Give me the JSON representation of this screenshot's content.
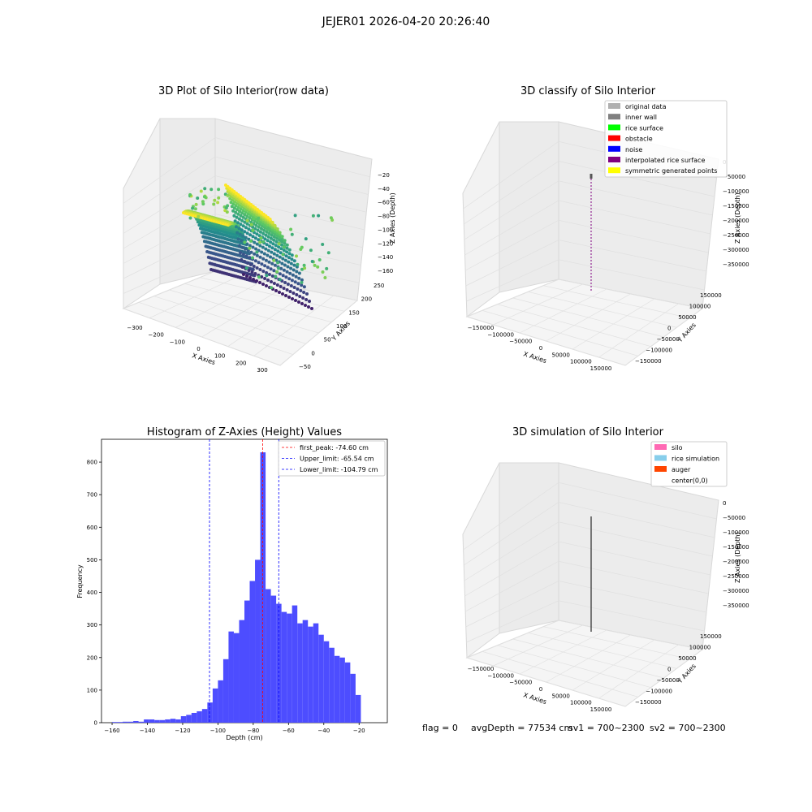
{
  "figure": {
    "suptitle": "JEJER01 2026-04-20 20:26:40"
  },
  "status": {
    "flag": "flag = 0",
    "avg_depth": "avgDepth = 77534 cm",
    "sv1": "sv1 = 700~2300",
    "sv2": "sv2 = 700~2300"
  },
  "panels": {
    "raw": {
      "title": "3D Plot of Silo Interior(row data)",
      "xlabel": "X Axies",
      "ylabel": "Y Axies",
      "zlabel": "Z Axies (Depth)",
      "xticks": [
        "−300",
        "−200",
        "−100",
        "0",
        "100",
        "200",
        "300"
      ],
      "yticks": [
        "−50",
        "0",
        "50",
        "100",
        "150",
        "200",
        "250"
      ],
      "zticks": [
        "−20",
        "−40",
        "−60",
        "−80",
        "−100",
        "−120",
        "−140",
        "−160"
      ],
      "colormap": [
        "#440154",
        "#3b528b",
        "#21908d",
        "#5dc963",
        "#fde725"
      ]
    },
    "classify": {
      "title": "3D classify of Silo Interior",
      "xlabel": "X Axies",
      "ylabel": "Y Axies",
      "zlabel": "Z Axies (Depth)",
      "xticks": [
        "−150000",
        "−100000",
        "−50000",
        "0",
        "50000",
        "100000",
        "150000"
      ],
      "yticks": [
        "−150000",
        "−100000",
        "−50000",
        "0",
        "50000",
        "100000",
        "150000"
      ],
      "zticks": [
        "0",
        "−50000",
        "−100000",
        "−150000",
        "−200000",
        "−250000",
        "−300000",
        "−350000"
      ],
      "legend": [
        {
          "label": "original data",
          "color": "#b0b0b0"
        },
        {
          "label": "inner wall",
          "color": "#808080"
        },
        {
          "label": "rice surface",
          "color": "#00ff00"
        },
        {
          "label": "obstacle",
          "color": "#ff0000"
        },
        {
          "label": "noise",
          "color": "#0000ff"
        },
        {
          "label": "interpolated rice surface",
          "color": "#800080"
        },
        {
          "label": "symmetric generated points",
          "color": "#ffff00"
        }
      ]
    },
    "simulation": {
      "title": "3D simulation of Silo Interior",
      "xlabel": "X Axies",
      "ylabel": "Y Axies",
      "zlabel": "Z Axies (Depth)",
      "xticks": [
        "−150000",
        "−100000",
        "−50000",
        "0",
        "50000",
        "100000",
        "150000"
      ],
      "yticks": [
        "−150000",
        "−100000",
        "−50000",
        "0",
        "50000",
        "100000",
        "150000"
      ],
      "zticks": [
        "0",
        "−50000",
        "−100000",
        "−150000",
        "−200000",
        "−250000",
        "−300000",
        "−350000"
      ],
      "legend": [
        {
          "label": "silo",
          "color": "#ff69b4"
        },
        {
          "label": "rice simulation",
          "color": "#87ceeb"
        },
        {
          "label": "auger",
          "color": "#ff4500"
        },
        {
          "label": "center(0,0)",
          "color": "#ffffff"
        }
      ]
    }
  },
  "chart_data": {
    "type": "bar",
    "title": "Histogram of Z-Axies (Height) Values",
    "xlabel": "Depth (cm)",
    "ylabel": "Frequency",
    "xlim": [
      -166,
      -4
    ],
    "ylim": [
      0,
      870
    ],
    "xticks": [
      -160,
      -140,
      -120,
      -100,
      -80,
      -60,
      -40,
      -20
    ],
    "xtick_labels": [
      "−160",
      "−140",
      "−120",
      "−100",
      "−80",
      "−60",
      "−40",
      "−20"
    ],
    "yticks": [
      0,
      100,
      200,
      300,
      400,
      500,
      600,
      700,
      800
    ],
    "bar_color": "#4d4dff",
    "bin_start": -160,
    "bin_width": 3,
    "values": [
      2,
      2,
      3,
      3,
      5,
      3,
      10,
      10,
      8,
      8,
      10,
      12,
      10,
      20,
      24,
      30,
      35,
      42,
      62,
      105,
      130,
      195,
      280,
      275,
      315,
      375,
      435,
      500,
      830,
      410,
      390,
      365,
      340,
      335,
      360,
      305,
      315,
      295,
      305,
      270,
      250,
      230,
      205,
      200,
      185,
      150,
      85
    ],
    "vlines": [
      {
        "label": "first_peak: -74.60 cm",
        "value": -74.6,
        "color": "#ff0000"
      },
      {
        "label": "Upper_limit: -65.54 cm",
        "value": -65.54,
        "color": "#0000ff"
      },
      {
        "label": "Lower_limit: -104.79 cm",
        "value": -104.79,
        "color": "#0000ff"
      }
    ]
  }
}
